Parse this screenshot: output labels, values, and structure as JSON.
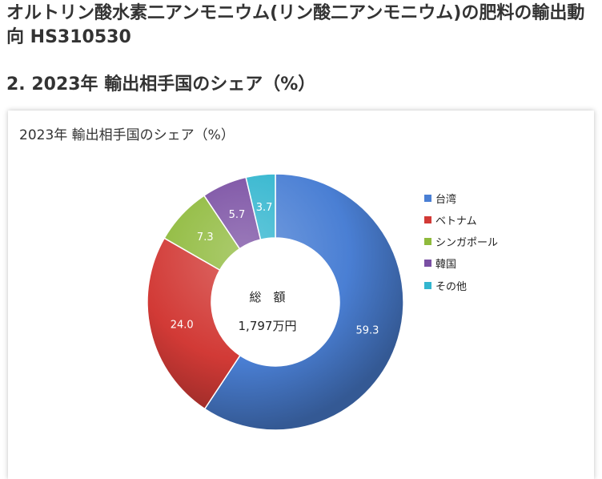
{
  "page": {
    "title": "オルトリン酸水素二アンモニウム(リン酸二アンモニウム)の肥料の輸出動向 HS310530",
    "section_title": "2. 2023年 輸出相手国のシェア（%）"
  },
  "chart_data": {
    "type": "pie",
    "style": "doughnut",
    "title": "2023年 輸出相手国のシェア（%）",
    "center_label": "総　額",
    "center_value": "1,797万円",
    "legend_position": "right",
    "categories": [
      "台湾",
      "ベトナム",
      "シンガポール",
      "韓国",
      "その他"
    ],
    "values": [
      59.3,
      24.0,
      7.3,
      5.7,
      3.7
    ],
    "data_labels": [
      "59.3",
      "24.0",
      "7.3",
      "5.7",
      "3.7"
    ],
    "colors": [
      "#4a7fd4",
      "#d23a36",
      "#8fba3c",
      "#7a4fa3",
      "#33b6cf"
    ]
  }
}
